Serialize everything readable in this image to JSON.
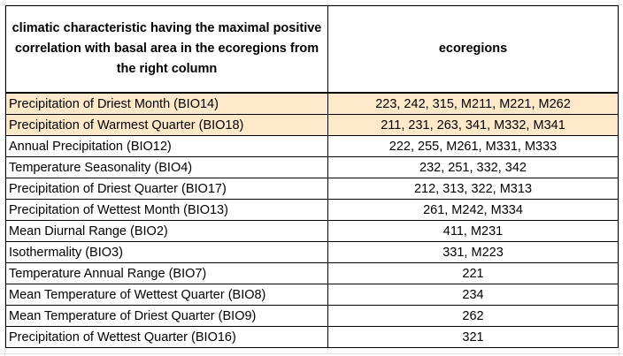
{
  "header": {
    "characteristic": "climatic characteristic having the maximal positive correlation with basal area in the ecoregions from the right column",
    "ecoregions": "ecoregions"
  },
  "rows": [
    {
      "characteristic": "Precipitation of Driest Month (BIO14)",
      "ecoregions": "223, 242, 315, M211, M221, M262",
      "highlight": true
    },
    {
      "characteristic": "Precipitation of Warmest Quarter (BIO18)",
      "ecoregions": "211, 231, 263, 341, M332, M341",
      "highlight": true
    },
    {
      "characteristic": "Annual Precipitation (BIO12)",
      "ecoregions": "222, 255, M261, M331, M333",
      "highlight": false
    },
    {
      "characteristic": "Temperature Seasonality (BIO4)",
      "ecoregions": "232, 251, 332, 342",
      "highlight": false
    },
    {
      "characteristic": "Precipitation of Driest Quarter (BIO17)",
      "ecoregions": "212, 313, 322, M313",
      "highlight": false
    },
    {
      "characteristic": "Precipitation of Wettest Month (BIO13)",
      "ecoregions": "261, M242, M334",
      "highlight": false
    },
    {
      "characteristic": "Mean Diurnal Range (BIO2)",
      "ecoregions": "411, M231",
      "highlight": false
    },
    {
      "characteristic": "Isothermality (BIO3)",
      "ecoregions": "331, M223",
      "highlight": false
    },
    {
      "characteristic": "Temperature Annual Range (BIO7)",
      "ecoregions": "221",
      "highlight": false
    },
    {
      "characteristic": "Mean Temperature of Wettest Quarter (BIO8)",
      "ecoregions": "234",
      "highlight": false
    },
    {
      "characteristic": "Mean Temperature of Driest Quarter (BIO9)",
      "ecoregions": "262",
      "highlight": false
    },
    {
      "characteristic": "Precipitation of Wettest Quarter (BIO16)",
      "ecoregions": "321",
      "highlight": false
    }
  ],
  "colors": {
    "highlight_fill": "#fde9c9",
    "border": "#000000",
    "gridline": "#e1e1e1"
  }
}
